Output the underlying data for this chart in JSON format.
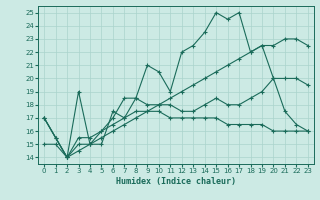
{
  "xlabel": "Humidex (Indice chaleur)",
  "xlim": [
    -0.5,
    23.5
  ],
  "ylim": [
    13.5,
    25.5
  ],
  "xticks": [
    0,
    1,
    2,
    3,
    4,
    5,
    6,
    7,
    8,
    9,
    10,
    11,
    12,
    13,
    14,
    15,
    16,
    17,
    18,
    19,
    20,
    21,
    22,
    23
  ],
  "yticks": [
    14,
    15,
    16,
    17,
    18,
    19,
    20,
    21,
    22,
    23,
    24,
    25
  ],
  "bg_color": "#cceae4",
  "line_color": "#1a6b5a",
  "grid_color": "#aad4cc",
  "lines": [
    {
      "x": [
        0,
        1,
        2,
        3,
        4,
        5,
        6,
        7,
        8,
        9,
        10,
        11,
        12,
        13,
        14,
        15,
        16,
        17,
        18,
        19,
        20,
        21,
        22,
        23
      ],
      "y": [
        17,
        15.5,
        14,
        15,
        15,
        16,
        16.5,
        17,
        17.5,
        17.5,
        17.5,
        17,
        17,
        17,
        17,
        17,
        16.5,
        16.5,
        16.5,
        16.5,
        16,
        16,
        16,
        16
      ]
    },
    {
      "x": [
        0,
        1,
        2,
        3,
        4,
        5,
        6,
        7,
        8,
        9,
        10,
        11,
        12,
        13,
        14,
        15,
        16,
        17,
        18,
        19,
        20,
        21,
        22,
        23
      ],
      "y": [
        17,
        15.5,
        14,
        19,
        15,
        15,
        17.5,
        17,
        18.5,
        21,
        20.5,
        19,
        22,
        22.5,
        23.5,
        25,
        24.5,
        25,
        22,
        22.5,
        20,
        17.5,
        16.5,
        16
      ]
    },
    {
      "x": [
        0,
        2,
        3,
        4,
        5,
        6,
        7,
        8,
        9,
        10,
        11,
        12,
        13,
        14,
        15,
        16,
        17,
        18,
        19,
        20,
        21,
        22,
        23
      ],
      "y": [
        17,
        14,
        15.5,
        15.5,
        16,
        17,
        18.5,
        18.5,
        18,
        18,
        18,
        17.5,
        17.5,
        18,
        18.5,
        18,
        18,
        18.5,
        19,
        20,
        20,
        20,
        19.5
      ]
    },
    {
      "x": [
        0,
        1,
        2,
        3,
        4,
        5,
        6,
        7,
        8,
        9,
        10,
        11,
        12,
        13,
        14,
        15,
        16,
        17,
        18,
        19,
        20,
        21,
        22,
        23
      ],
      "y": [
        15,
        15,
        14,
        14.5,
        15,
        15.5,
        16,
        16.5,
        17,
        17.5,
        18,
        18.5,
        19,
        19.5,
        20,
        20.5,
        21,
        21.5,
        22,
        22.5,
        22.5,
        23,
        23,
        22.5
      ]
    }
  ]
}
